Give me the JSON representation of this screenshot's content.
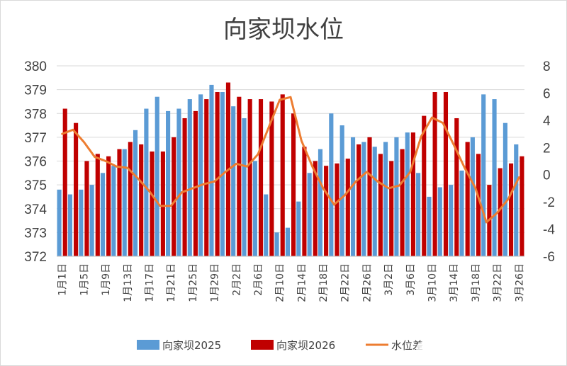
{
  "chart_data": {
    "type": "bar",
    "title": "向家坝水位",
    "categories": [
      "1月1日",
      "1月3日",
      "1月5日",
      "1月7日",
      "1月9日",
      "1月11日",
      "1月13日",
      "1月15日",
      "1月17日",
      "1月19日",
      "1月21日",
      "1月23日",
      "1月25日",
      "1月27日",
      "1月29日",
      "1月31日",
      "2月2日",
      "2月4日",
      "2月6日",
      "2月8日",
      "2月10日",
      "2月12日",
      "2月14日",
      "2月16日",
      "2月18日",
      "2月20日",
      "2月22日",
      "2月24日",
      "2月26日",
      "2月28日",
      "3月2日",
      "3月4日",
      "3月6日",
      "3月8日",
      "3月10日",
      "3月12日",
      "3月14日",
      "3月16日",
      "3月18日",
      "3月20日",
      "3月22日",
      "3月24日",
      "3月26日"
    ],
    "xtick_labels": [
      "1月1日",
      "1月5日",
      "1月9日",
      "1月13日",
      "1月17日",
      "1月21日",
      "1月25日",
      "1月29日",
      "2月2日",
      "2月6日",
      "2月10日",
      "2月14日",
      "2月18日",
      "2月22日",
      "2月26日",
      "3月2日",
      "3月6日",
      "3月10日",
      "3月14日",
      "3月18日",
      "3月22日",
      "3月26日"
    ],
    "ylim": [
      372,
      380
    ],
    "yticks": [
      "372",
      "373",
      "374",
      "375",
      "376",
      "377",
      "378",
      "379",
      "380"
    ],
    "y2lim": [
      -6,
      8
    ],
    "y2ticks": [
      "-6",
      "-4",
      "-2",
      "0",
      "2",
      "4",
      "6",
      "8"
    ],
    "series": [
      {
        "name": "向家坝2025",
        "axis": "left",
        "kind": "bar",
        "color": "#5b9bd5",
        "values": [
          374.8,
          374.6,
          374.8,
          375.0,
          375.5,
          375.8,
          376.5,
          377.3,
          378.2,
          378.7,
          378.1,
          378.2,
          378.6,
          378.8,
          379.2,
          378.9,
          378.3,
          377.8,
          376.0,
          374.6,
          373.0,
          373.2,
          374.3,
          375.5,
          376.5,
          378.0,
          377.5,
          377.0,
          376.8,
          376.6,
          376.8,
          377.0,
          377.2,
          375.5,
          374.5,
          374.9,
          375.0,
          375.6,
          377.0,
          378.8,
          378.6,
          377.6,
          376.7
        ]
      },
      {
        "name": "向家坝2026",
        "axis": "left",
        "kind": "bar",
        "color": "#c00000",
        "values": [
          378.2,
          377.6,
          376.0,
          376.3,
          376.2,
          376.5,
          376.8,
          376.7,
          376.4,
          376.4,
          377.0,
          377.8,
          378.1,
          378.6,
          378.9,
          379.3,
          378.7,
          378.6,
          378.6,
          378.5,
          378.8,
          378.0,
          376.6,
          376.0,
          375.8,
          375.9,
          376.1,
          376.7,
          377.0,
          376.3,
          376.0,
          376.5,
          377.2,
          377.9,
          378.9,
          378.9,
          377.8,
          376.8,
          376.3,
          375.0,
          375.7,
          375.9,
          376.2
        ]
      },
      {
        "name": "水位差",
        "axis": "right",
        "kind": "line",
        "color": "#ed7d31",
        "values": [
          3.0,
          3.3,
          2.4,
          1.3,
          1.0,
          0.6,
          0.5,
          -0.3,
          -1.2,
          -2.3,
          -2.3,
          -1.3,
          -1.0,
          -0.7,
          -0.5,
          0.2,
          0.8,
          0.6,
          1.5,
          3.5,
          5.5,
          5.7,
          2.5,
          0.6,
          -1.0,
          -2.2,
          -1.5,
          -0.5,
          0.2,
          -0.5,
          -1.0,
          -0.8,
          0.2,
          2.8,
          4.2,
          3.8,
          2.2,
          0.5,
          -1.0,
          -3.5,
          -2.8,
          -1.8,
          -0.2
        ]
      }
    ]
  }
}
